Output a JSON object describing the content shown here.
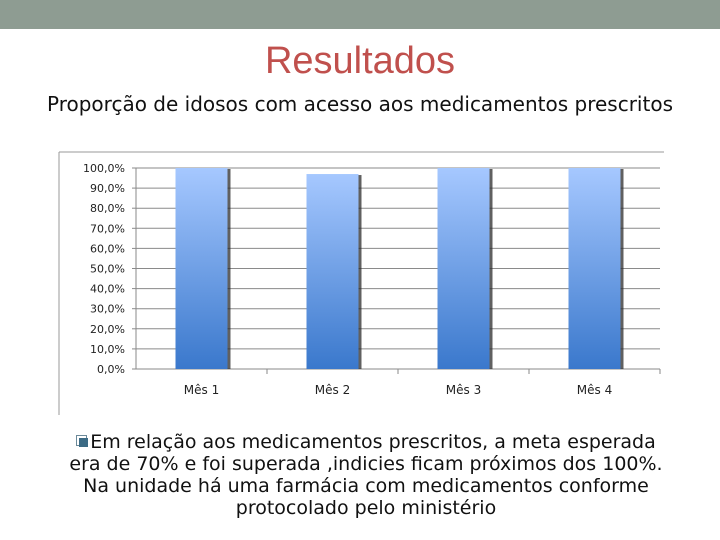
{
  "slide": {
    "title": "Resultados",
    "subtitle": "Proporção de idosos com acesso aos medicamentos prescritos",
    "body": "Em relação aos medicamentos prescritos, a meta esperada era de 70% e foi superada ,indicies ficam próximos dos 100%. Na unidade há uma farmácia com medicamentos conforme protocolado pelo ministério",
    "bullet_icon": "checkbox-bullet-icon",
    "colors": {
      "header_bar": "#8e9c92",
      "title": "#c0504d",
      "bar_top": "#a6c8ff",
      "bar_bottom": "#3a78cc"
    }
  },
  "chart_data": {
    "type": "bar",
    "categories": [
      "Mês 1",
      "Mês 2",
      "Mês 3",
      "Mês 4"
    ],
    "values": [
      100.0,
      97.0,
      100.0,
      100.0
    ],
    "yticks": [
      "0,0%",
      "10,0%",
      "20,0%",
      "30,0%",
      "40,0%",
      "50,0%",
      "60,0%",
      "70,0%",
      "80,0%",
      "90,0%",
      "100,0%"
    ],
    "ylim": [
      0,
      100
    ],
    "grid": true,
    "legend": "none"
  }
}
